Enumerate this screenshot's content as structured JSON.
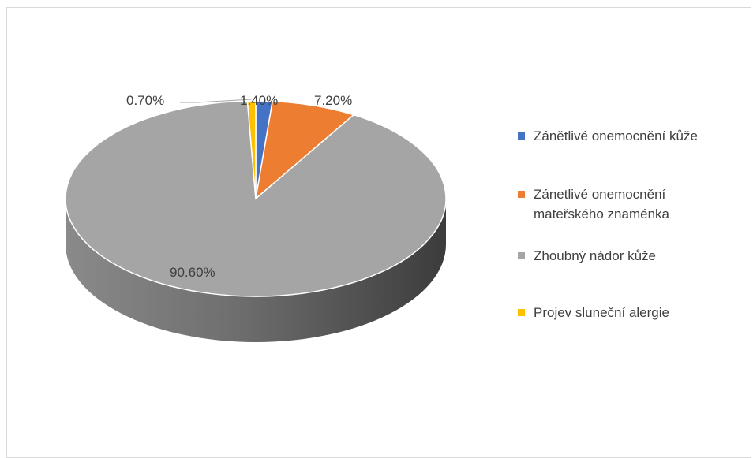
{
  "chart_data": {
    "type": "pie",
    "title": "",
    "categories": [
      "Zánětlivé onemocnění kůže",
      "Zánetlivé onemocnění mateřského znaménka",
      "Zhoubný nádor kůže",
      "Projev sluneční alergie"
    ],
    "values": [
      1.4,
      7.2,
      90.6,
      0.7
    ],
    "labels": [
      "1.40%",
      "7.20%",
      "90.60%",
      "0.70%"
    ],
    "colors": [
      "#4472c4",
      "#ed7d31",
      "#a5a5a5",
      "#ffc000"
    ],
    "legend_position": "right",
    "style": "3d"
  },
  "legend": {
    "items": [
      {
        "label_lines": [
          "Zánětlivé onemocnění kůže"
        ]
      },
      {
        "label_lines": [
          "Zánetlivé onemocnění",
          "mateřského znaménka"
        ]
      },
      {
        "label_lines": [
          "Zhoubný nádor kůže"
        ]
      },
      {
        "label_lines": [
          "Projev sluneční alergie"
        ]
      }
    ]
  }
}
